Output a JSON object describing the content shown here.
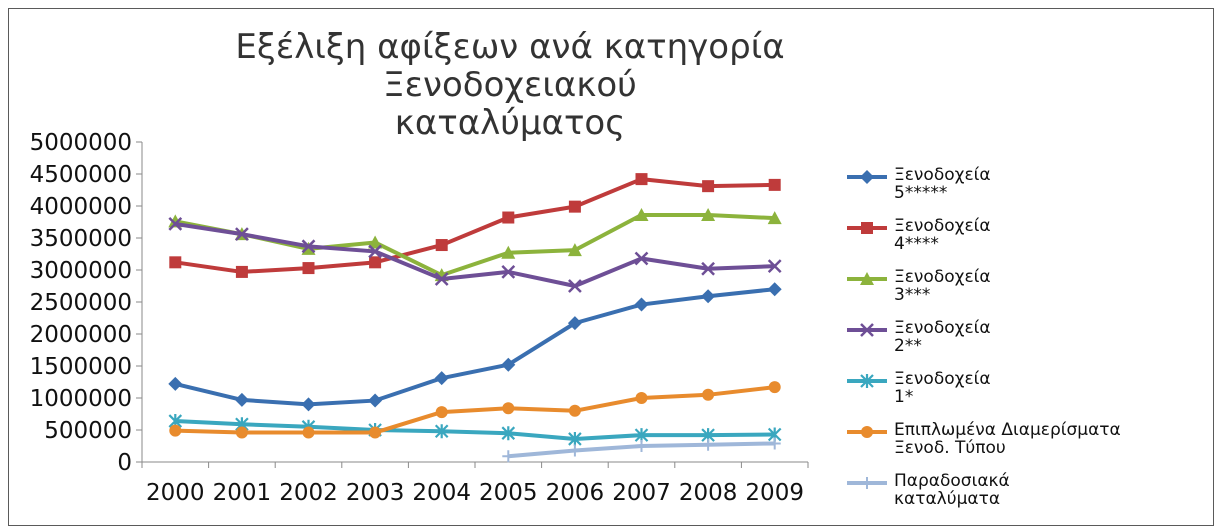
{
  "chart_data": {
    "type": "line",
    "title_line1": "Εξέλιξη αφίξεων ανά κατηγορία Ξενοδοχειακού",
    "title_line2": "καταλύματος",
    "x": [
      "2000",
      "2001",
      "2002",
      "2003",
      "2004",
      "2005",
      "2006",
      "2007",
      "2008",
      "2009"
    ],
    "ylim": [
      0,
      5000000
    ],
    "yticks": [
      "0",
      "500000",
      "1000000",
      "1500000",
      "2000000",
      "2500000",
      "3000000",
      "3500000",
      "4000000",
      "4500000",
      "5000000"
    ],
    "grid": false,
    "legend_position": "right",
    "series": [
      {
        "name_line1": "Ξενοδοχεία",
        "name_line2": "5*****",
        "color": "#3a6fb0",
        "marker": "diamond",
        "values": [
          1220000,
          970000,
          900000,
          960000,
          1310000,
          1520000,
          2170000,
          2460000,
          2590000,
          2700000
        ]
      },
      {
        "name_line1": "Ξενοδοχεία",
        "name_line2": "4****",
        "color": "#bf3b3b",
        "marker": "square",
        "values": [
          3120000,
          2970000,
          3030000,
          3120000,
          3390000,
          3820000,
          3990000,
          4420000,
          4310000,
          4330000
        ]
      },
      {
        "name_line1": "Ξενοδοχεία",
        "name_line2": "3***",
        "color": "#8cb33c",
        "marker": "triangle",
        "values": [
          3760000,
          3560000,
          3330000,
          3430000,
          2920000,
          3270000,
          3310000,
          3860000,
          3860000,
          3810000
        ]
      },
      {
        "name_line1": "Ξενοδοχεία",
        "name_line2": "2**",
        "color": "#6e4f96",
        "marker": "x",
        "values": [
          3720000,
          3560000,
          3370000,
          3290000,
          2860000,
          2970000,
          2750000,
          3180000,
          3020000,
          3060000
        ]
      },
      {
        "name_line1": "Ξενοδοχεία",
        "name_line2": "1*",
        "color": "#3aa7bf",
        "marker": "star",
        "values": [
          640000,
          590000,
          550000,
          500000,
          480000,
          450000,
          360000,
          420000,
          420000,
          430000
        ]
      },
      {
        "name_line1": "Επιπλωμένα Διαμερίσματα",
        "name_line2": "Ξενοδ. Τύπου",
        "color": "#e88b2d",
        "marker": "circle",
        "values": [
          490000,
          460000,
          460000,
          460000,
          780000,
          840000,
          800000,
          1000000,
          1050000,
          1170000
        ]
      },
      {
        "name_line1": "Παραδοσιακά",
        "name_line2": "καταλύματα",
        "color": "#9fb7d9",
        "marker": "plus",
        "values": [
          null,
          null,
          null,
          null,
          null,
          90000,
          180000,
          250000,
          270000,
          290000
        ]
      }
    ]
  }
}
